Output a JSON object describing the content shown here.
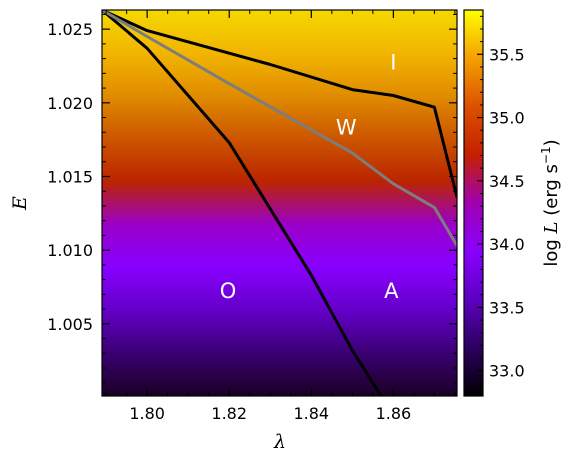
{
  "chart_data": {
    "type": "heatmap",
    "xlabel": "λ",
    "ylabel": "E",
    "xlim": [
      1.789,
      1.8755
    ],
    "ylim": [
      1.0001,
      1.0263
    ],
    "x_ticks": [
      "1.80",
      "1.82",
      "1.84",
      "1.86"
    ],
    "x_tick_values": [
      1.8,
      1.82,
      1.84,
      1.86
    ],
    "y_ticks": [
      "1.005",
      "1.010",
      "1.015",
      "1.020",
      "1.025"
    ],
    "y_tick_values": [
      1.005,
      1.01,
      1.015,
      1.02,
      1.025
    ],
    "colorbar": {
      "label_prefix": "log",
      "label_var": "L",
      "label_units": "(erg s",
      "label_exp": "−1",
      "label_close": ")",
      "range": [
        32.8,
        35.85
      ],
      "ticks": [
        "33.0",
        "33.5",
        "34.0",
        "34.5",
        "35.0",
        "35.5"
      ],
      "tick_values": [
        33.0,
        33.5,
        34.0,
        34.5,
        35.0,
        35.5
      ],
      "colormap": "gnuplot"
    },
    "heat_gradient_top_to_bottom": [
      "#f4d800",
      "#f2b500",
      "#e08c00",
      "#cc5500",
      "#bb2400",
      "#9a00c8",
      "#8800ff",
      "#6400c8",
      "#3a0072",
      "#1a0024"
    ],
    "curves": [
      {
        "color": "#000000",
        "x": [
          1.789,
          1.8,
          1.82,
          1.84,
          1.85,
          1.857
        ],
        "y": [
          1.0263,
          1.0237,
          1.0173,
          1.0083,
          1.0032,
          1.0001
        ]
      },
      {
        "color": "#000000",
        "x": [
          1.789,
          1.8,
          1.83,
          1.85,
          1.86,
          1.87,
          1.8755
        ],
        "y": [
          1.0263,
          1.0249,
          1.0226,
          1.0209,
          1.0205,
          1.0197,
          1.0136
        ]
      },
      {
        "color": "#7d7d7d",
        "x": [
          1.789,
          1.8,
          1.82,
          1.85,
          1.86,
          1.87,
          1.8755
        ],
        "y": [
          1.0263,
          1.0245,
          1.0213,
          1.0166,
          1.0145,
          1.0129,
          1.0103
        ]
      }
    ],
    "annotations": [
      {
        "text": "I",
        "x": 1.86,
        "y": 1.0228
      },
      {
        "text": "W",
        "x": 1.8485,
        "y": 1.0184
      },
      {
        "text": "O",
        "x": 1.8197,
        "y": 1.0073
      },
      {
        "text": "A",
        "x": 1.8595,
        "y": 1.0073
      }
    ]
  }
}
